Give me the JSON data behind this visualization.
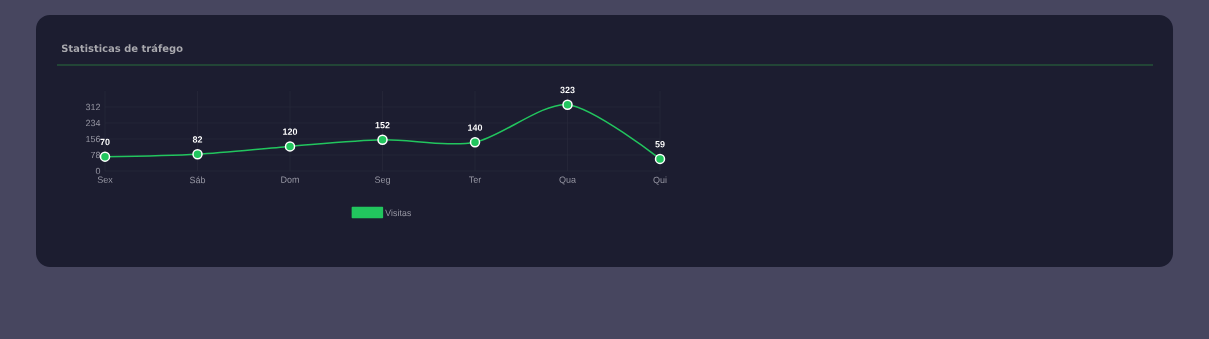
{
  "chart_data": {
    "type": "line",
    "title": "Statisticas de tráfego",
    "categories": [
      "Sex",
      "Sáb",
      "Dom",
      "Seg",
      "Ter",
      "Qua",
      "Qui"
    ],
    "series": [
      {
        "name": "Visitas",
        "color": "#22c55e",
        "values": [
          70,
          82,
          120,
          152,
          140,
          323,
          59
        ]
      }
    ],
    "ylim": [
      0,
      390
    ],
    "yticks": [
      0,
      78,
      156,
      234,
      312
    ],
    "grid": true,
    "legend": "bottom",
    "marker": "circle",
    "data_labels": true
  }
}
